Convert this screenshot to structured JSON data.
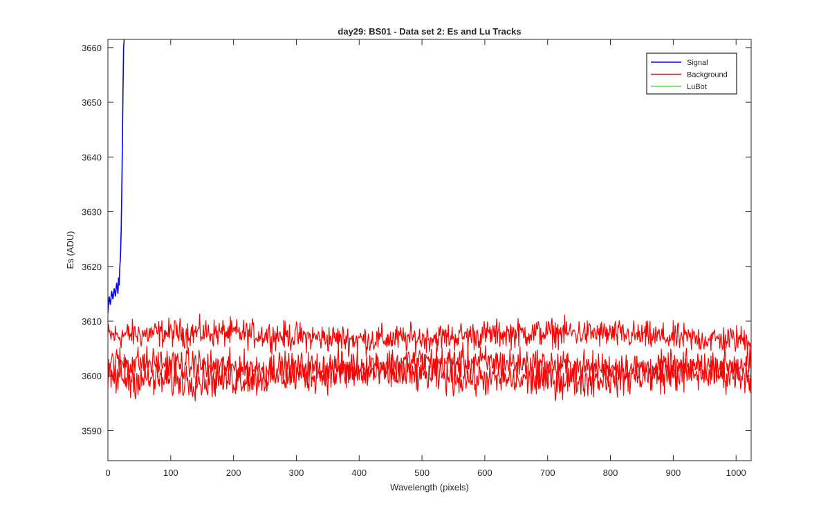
{
  "chart_data": {
    "type": "line",
    "title": "day29: BS01 - Data set 2: Es and Lu Tracks",
    "xlabel": "Wavelength (pixels)",
    "ylabel": "Es (ADU)",
    "xlim": [
      0,
      1024
    ],
    "ylim": [
      3584.5,
      3661.5
    ],
    "xticks": [
      0,
      100,
      200,
      300,
      400,
      500,
      600,
      700,
      800,
      900,
      1000
    ],
    "yticks": [
      3590,
      3600,
      3610,
      3620,
      3630,
      3640,
      3650,
      3660
    ],
    "grid": false,
    "legend_position": "top-right",
    "series": [
      {
        "name": "Signal",
        "color": "#0000ff",
        "x": [
          0,
          2,
          4,
          6,
          8,
          10,
          12,
          14,
          16,
          17,
          18,
          19,
          20,
          21,
          22,
          23,
          24,
          25,
          26
        ],
        "values": [
          3611.5,
          3614.5,
          3613.0,
          3615.5,
          3614.0,
          3616.0,
          3614.5,
          3617.0,
          3615.0,
          3618.0,
          3616.5,
          3620.0,
          3622.0,
          3626.0,
          3633.0,
          3642.0,
          3652.0,
          3660.0,
          3661.5
        ]
      },
      {
        "name": "Background",
        "color": "#ff0000",
        "note_tracks": "three noisy tracks",
        "tracks": [
          {
            "mean": 3607.3,
            "amplitude": 1.6
          },
          {
            "mean": 3602.0,
            "amplitude": 1.8
          },
          {
            "mean": 3599.8,
            "amplitude": 2.0
          }
        ],
        "x_range": [
          0,
          1024
        ]
      },
      {
        "name": "LuBot",
        "color": "#00cc00"
      }
    ]
  }
}
